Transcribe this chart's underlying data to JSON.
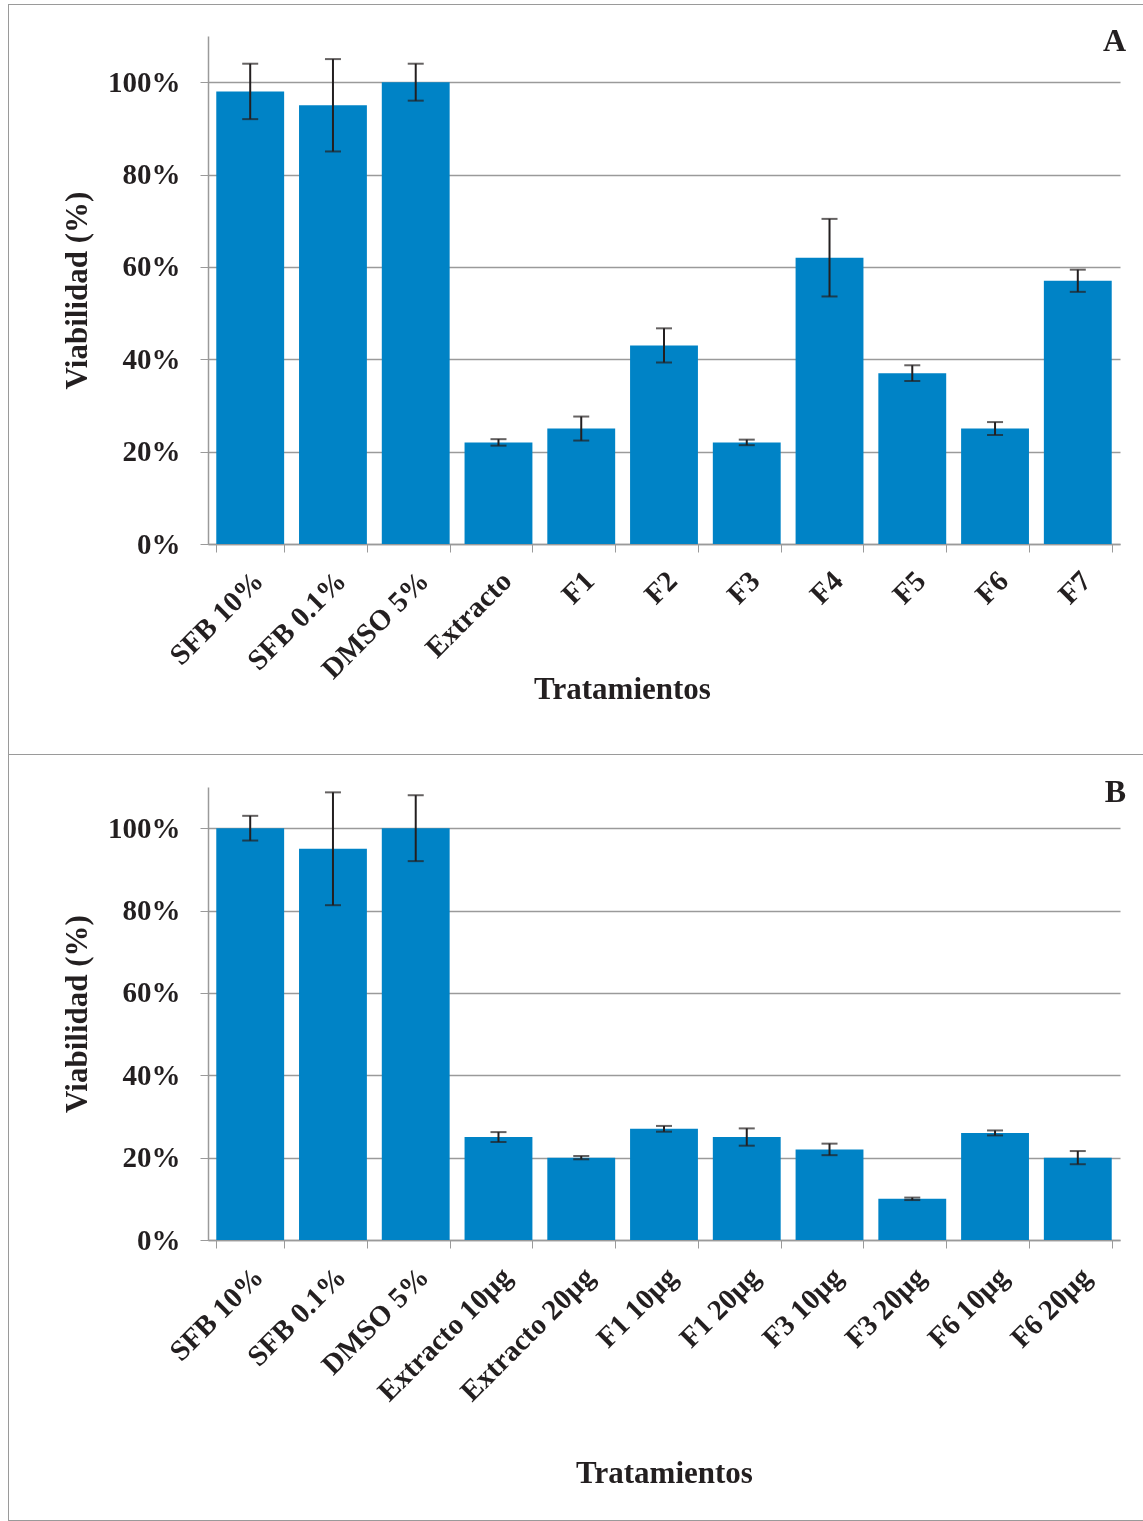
{
  "chart_data": [
    {
      "type": "bar",
      "title": "A",
      "xlabel": "Tratamientos",
      "ylabel": "Viabilidad (%)",
      "categories": [
        "SFB 10%",
        "SFB 0.1%",
        "DMSO 5%",
        "Extracto",
        "F1",
        "F2",
        "F3",
        "F4",
        "F5",
        "F6",
        "F7"
      ],
      "values": [
        98,
        95,
        100,
        22,
        25,
        43,
        22,
        62,
        37,
        25,
        57
      ],
      "errors": [
        6,
        10,
        4,
        0.7,
        2.6,
        3.7,
        0.6,
        8.4,
        1.7,
        1.4,
        2.4
      ],
      "color": "#0083c6",
      "ylim": [
        0,
        110
      ],
      "yticks": [
        {
          "value": 0,
          "label": "0%"
        },
        {
          "value": 20,
          "label": "20%"
        },
        {
          "value": 40,
          "label": "40%"
        },
        {
          "value": 60,
          "label": "60%"
        },
        {
          "value": 80,
          "label": "80%"
        },
        {
          "value": 100,
          "label": "100%"
        }
      ],
      "grid": "y"
    },
    {
      "type": "bar",
      "title": "B",
      "xlabel": "Tratamientos",
      "ylabel": "Viabilidad (%)",
      "categories": [
        "SFB 10%",
        "SFB 0.1%",
        "DMSO 5%",
        "Extracto 10µg",
        "Extracto 20µg",
        "F1 10µg",
        "F1 20µg",
        "F3 10µg",
        "F3 20µg",
        "F6 10µg",
        "F6 20µg"
      ],
      "values": [
        100,
        95,
        100,
        25,
        20,
        27,
        25,
        22,
        10,
        26,
        20
      ],
      "errors": [
        3,
        13.7,
        8,
        1.2,
        0.4,
        0.7,
        2.1,
        1.4,
        0.3,
        0.6,
        1.6
      ],
      "color": "#0083c6",
      "ylim": [
        0,
        110
      ],
      "yticks": [
        {
          "value": 0,
          "label": "0%"
        },
        {
          "value": 20,
          "label": "20%"
        },
        {
          "value": 40,
          "label": "40%"
        },
        {
          "value": 60,
          "label": "60%"
        },
        {
          "value": 80,
          "label": "80%"
        },
        {
          "value": 100,
          "label": "100%"
        }
      ],
      "grid": "y"
    }
  ]
}
